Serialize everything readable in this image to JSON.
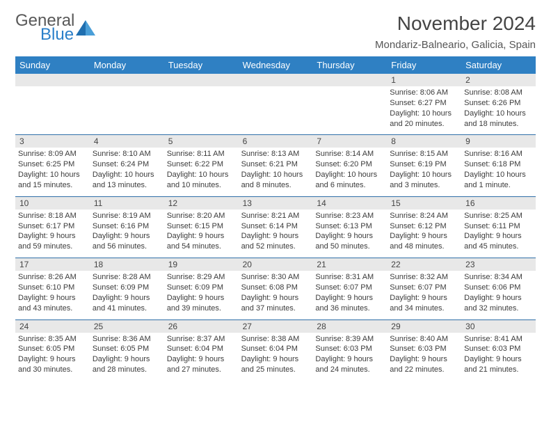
{
  "brand": {
    "name1": "General",
    "name2": "Blue",
    "triangle_color": "#1f6fb0"
  },
  "title": "November 2024",
  "location": "Mondariz-Balneario, Galicia, Spain",
  "colors": {
    "header_bg": "#2f80c3",
    "header_text": "#ffffff",
    "day_bg": "#e8e8e8",
    "rule": "#2f6fa8",
    "text": "#3b3b3b"
  },
  "dayNames": [
    "Sunday",
    "Monday",
    "Tuesday",
    "Wednesday",
    "Thursday",
    "Friday",
    "Saturday"
  ],
  "weeks": [
    [
      {
        "n": "",
        "lines": [
          "",
          "",
          "",
          ""
        ]
      },
      {
        "n": "",
        "lines": [
          "",
          "",
          "",
          ""
        ]
      },
      {
        "n": "",
        "lines": [
          "",
          "",
          "",
          ""
        ]
      },
      {
        "n": "",
        "lines": [
          "",
          "",
          "",
          ""
        ]
      },
      {
        "n": "",
        "lines": [
          "",
          "",
          "",
          ""
        ]
      },
      {
        "n": "1",
        "lines": [
          "Sunrise: 8:06 AM",
          "Sunset: 6:27 PM",
          "Daylight: 10 hours",
          "and 20 minutes."
        ]
      },
      {
        "n": "2",
        "lines": [
          "Sunrise: 8:08 AM",
          "Sunset: 6:26 PM",
          "Daylight: 10 hours",
          "and 18 minutes."
        ]
      }
    ],
    [
      {
        "n": "3",
        "lines": [
          "Sunrise: 8:09 AM",
          "Sunset: 6:25 PM",
          "Daylight: 10 hours",
          "and 15 minutes."
        ]
      },
      {
        "n": "4",
        "lines": [
          "Sunrise: 8:10 AM",
          "Sunset: 6:24 PM",
          "Daylight: 10 hours",
          "and 13 minutes."
        ]
      },
      {
        "n": "5",
        "lines": [
          "Sunrise: 8:11 AM",
          "Sunset: 6:22 PM",
          "Daylight: 10 hours",
          "and 10 minutes."
        ]
      },
      {
        "n": "6",
        "lines": [
          "Sunrise: 8:13 AM",
          "Sunset: 6:21 PM",
          "Daylight: 10 hours",
          "and 8 minutes."
        ]
      },
      {
        "n": "7",
        "lines": [
          "Sunrise: 8:14 AM",
          "Sunset: 6:20 PM",
          "Daylight: 10 hours",
          "and 6 minutes."
        ]
      },
      {
        "n": "8",
        "lines": [
          "Sunrise: 8:15 AM",
          "Sunset: 6:19 PM",
          "Daylight: 10 hours",
          "and 3 minutes."
        ]
      },
      {
        "n": "9",
        "lines": [
          "Sunrise: 8:16 AM",
          "Sunset: 6:18 PM",
          "Daylight: 10 hours",
          "and 1 minute."
        ]
      }
    ],
    [
      {
        "n": "10",
        "lines": [
          "Sunrise: 8:18 AM",
          "Sunset: 6:17 PM",
          "Daylight: 9 hours",
          "and 59 minutes."
        ]
      },
      {
        "n": "11",
        "lines": [
          "Sunrise: 8:19 AM",
          "Sunset: 6:16 PM",
          "Daylight: 9 hours",
          "and 56 minutes."
        ]
      },
      {
        "n": "12",
        "lines": [
          "Sunrise: 8:20 AM",
          "Sunset: 6:15 PM",
          "Daylight: 9 hours",
          "and 54 minutes."
        ]
      },
      {
        "n": "13",
        "lines": [
          "Sunrise: 8:21 AM",
          "Sunset: 6:14 PM",
          "Daylight: 9 hours",
          "and 52 minutes."
        ]
      },
      {
        "n": "14",
        "lines": [
          "Sunrise: 8:23 AM",
          "Sunset: 6:13 PM",
          "Daylight: 9 hours",
          "and 50 minutes."
        ]
      },
      {
        "n": "15",
        "lines": [
          "Sunrise: 8:24 AM",
          "Sunset: 6:12 PM",
          "Daylight: 9 hours",
          "and 48 minutes."
        ]
      },
      {
        "n": "16",
        "lines": [
          "Sunrise: 8:25 AM",
          "Sunset: 6:11 PM",
          "Daylight: 9 hours",
          "and 45 minutes."
        ]
      }
    ],
    [
      {
        "n": "17",
        "lines": [
          "Sunrise: 8:26 AM",
          "Sunset: 6:10 PM",
          "Daylight: 9 hours",
          "and 43 minutes."
        ]
      },
      {
        "n": "18",
        "lines": [
          "Sunrise: 8:28 AM",
          "Sunset: 6:09 PM",
          "Daylight: 9 hours",
          "and 41 minutes."
        ]
      },
      {
        "n": "19",
        "lines": [
          "Sunrise: 8:29 AM",
          "Sunset: 6:09 PM",
          "Daylight: 9 hours",
          "and 39 minutes."
        ]
      },
      {
        "n": "20",
        "lines": [
          "Sunrise: 8:30 AM",
          "Sunset: 6:08 PM",
          "Daylight: 9 hours",
          "and 37 minutes."
        ]
      },
      {
        "n": "21",
        "lines": [
          "Sunrise: 8:31 AM",
          "Sunset: 6:07 PM",
          "Daylight: 9 hours",
          "and 36 minutes."
        ]
      },
      {
        "n": "22",
        "lines": [
          "Sunrise: 8:32 AM",
          "Sunset: 6:07 PM",
          "Daylight: 9 hours",
          "and 34 minutes."
        ]
      },
      {
        "n": "23",
        "lines": [
          "Sunrise: 8:34 AM",
          "Sunset: 6:06 PM",
          "Daylight: 9 hours",
          "and 32 minutes."
        ]
      }
    ],
    [
      {
        "n": "24",
        "lines": [
          "Sunrise: 8:35 AM",
          "Sunset: 6:05 PM",
          "Daylight: 9 hours",
          "and 30 minutes."
        ]
      },
      {
        "n": "25",
        "lines": [
          "Sunrise: 8:36 AM",
          "Sunset: 6:05 PM",
          "Daylight: 9 hours",
          "and 28 minutes."
        ]
      },
      {
        "n": "26",
        "lines": [
          "Sunrise: 8:37 AM",
          "Sunset: 6:04 PM",
          "Daylight: 9 hours",
          "and 27 minutes."
        ]
      },
      {
        "n": "27",
        "lines": [
          "Sunrise: 8:38 AM",
          "Sunset: 6:04 PM",
          "Daylight: 9 hours",
          "and 25 minutes."
        ]
      },
      {
        "n": "28",
        "lines": [
          "Sunrise: 8:39 AM",
          "Sunset: 6:03 PM",
          "Daylight: 9 hours",
          "and 24 minutes."
        ]
      },
      {
        "n": "29",
        "lines": [
          "Sunrise: 8:40 AM",
          "Sunset: 6:03 PM",
          "Daylight: 9 hours",
          "and 22 minutes."
        ]
      },
      {
        "n": "30",
        "lines": [
          "Sunrise: 8:41 AM",
          "Sunset: 6:03 PM",
          "Daylight: 9 hours",
          "and 21 minutes."
        ]
      }
    ]
  ]
}
